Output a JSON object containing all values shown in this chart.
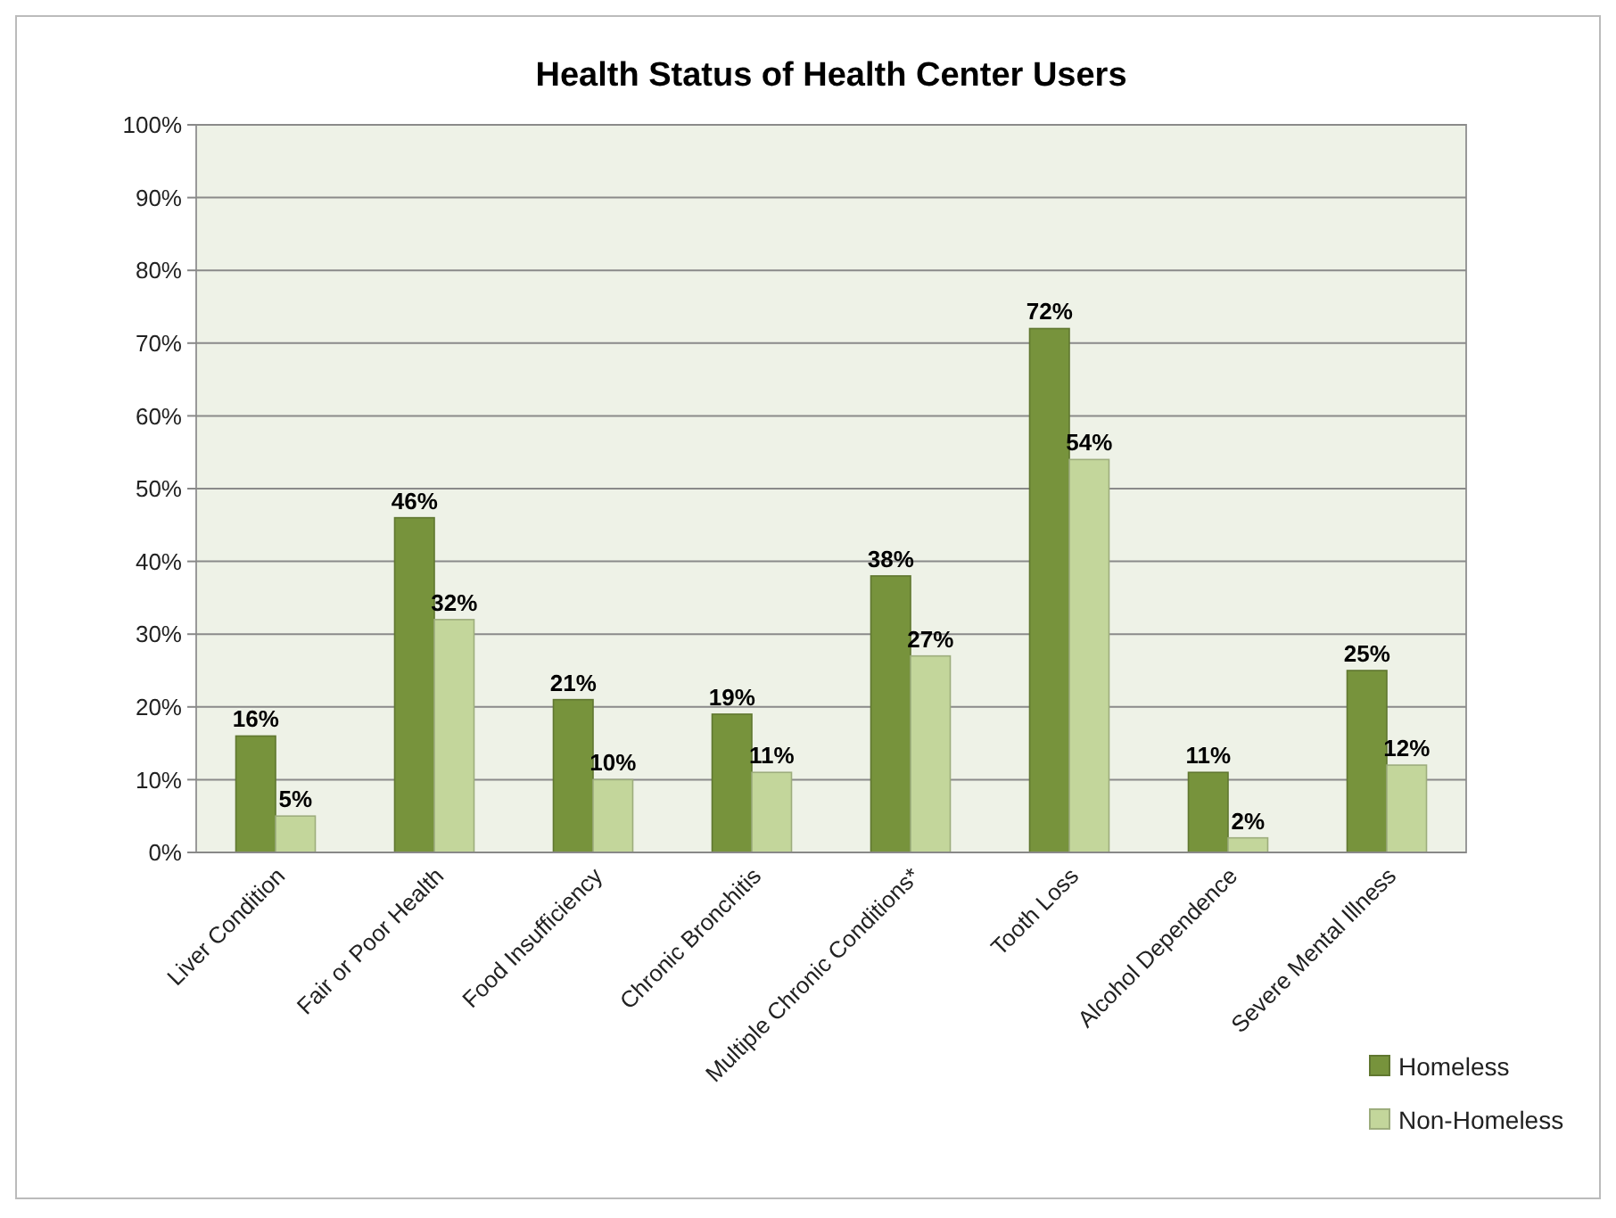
{
  "chart_data": {
    "type": "bar",
    "title": "Health Status of Health Center Users",
    "categories": [
      "Liver Condition",
      "Fair or Poor Health",
      "Food Insufficiency",
      "Chronic Bronchitis",
      "Multiple Chronic Conditions*",
      "Tooth Loss",
      "Alcohol Dependence",
      "Severe Mental Illness"
    ],
    "series": [
      {
        "name": "Homeless",
        "color": "#77933c",
        "values": [
          16,
          46,
          21,
          19,
          38,
          72,
          11,
          25
        ],
        "value_labels": [
          "16%",
          "46%",
          "21%",
          "19%",
          "38%",
          "72%",
          "11%",
          "25%"
        ]
      },
      {
        "name": "Non-Homeless",
        "color": "#c3d69b",
        "values": [
          5,
          32,
          10,
          11,
          27,
          54,
          2,
          12
        ],
        "value_labels": [
          "5%",
          "32%",
          "10%",
          "11%",
          "27%",
          "54%",
          "2%",
          "12%"
        ]
      }
    ],
    "ylim": [
      0,
      100
    ],
    "yticks": [
      {
        "value": 0,
        "label": "0%"
      },
      {
        "value": 10,
        "label": "10%"
      },
      {
        "value": 20,
        "label": "20%"
      },
      {
        "value": 30,
        "label": "30%"
      },
      {
        "value": 40,
        "label": "40%"
      },
      {
        "value": 50,
        "label": "50%"
      },
      {
        "value": 60,
        "label": "60%"
      },
      {
        "value": 70,
        "label": "70%"
      },
      {
        "value": 80,
        "label": "80%"
      },
      {
        "value": 90,
        "label": "90%"
      },
      {
        "value": 100,
        "label": "100%"
      }
    ],
    "grid": "y",
    "legend": "bottom right"
  }
}
